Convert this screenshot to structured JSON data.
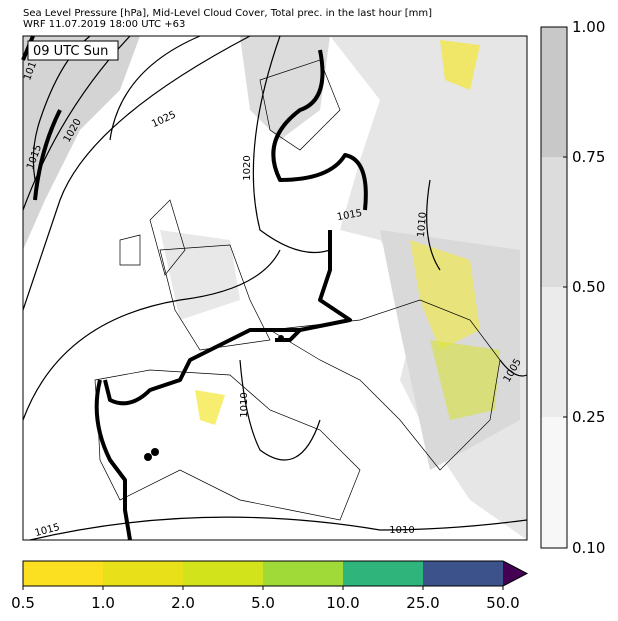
{
  "header": {
    "title": "Sea Level Pressure [hPa], Mid-Level Cloud Cover, Total prec. in the last hour [mm]",
    "subtitle": "WRF 11.07.2019 18:00 UTC +63"
  },
  "map": {
    "time_label": "09 UTC Sun",
    "isobar_labels": [
      "101",
      "1015",
      "1020",
      "1025",
      "1020",
      "1015",
      "1010",
      "1010",
      "1005",
      "1015",
      "1010"
    ]
  },
  "cloud_colorbar": {
    "ticks": [
      "1.00",
      "0.75",
      "0.50",
      "0.25",
      "0.10"
    ]
  },
  "precip_colorbar": {
    "ticks": [
      "0.5",
      "1.0",
      "2.0",
      "5.0",
      "10.0",
      "25.0",
      "50.0"
    ]
  }
}
